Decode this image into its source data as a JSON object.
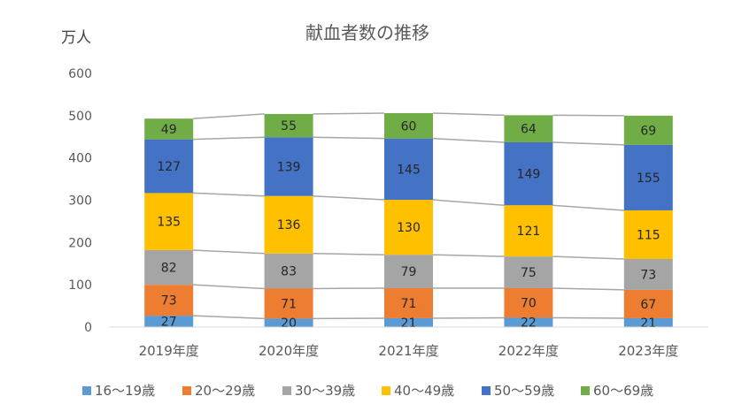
{
  "chart_data": {
    "type": "bar",
    "stacked": true,
    "title": "献血者数の推移",
    "ylabel": "万人",
    "ylim": [
      0,
      600
    ],
    "yticks": [
      0,
      100,
      200,
      300,
      400,
      500,
      600
    ],
    "grid": false,
    "series_lines": true,
    "legend_position": "bottom",
    "categories": [
      "2019年度",
      "2020年度",
      "2021年度",
      "2022年度",
      "2023年度"
    ],
    "series": [
      {
        "name": "16～19歳",
        "color": "#5B9BD5",
        "values": [
          27,
          20,
          21,
          22,
          21
        ]
      },
      {
        "name": "20～29歳",
        "color": "#ED7D31",
        "values": [
          73,
          71,
          71,
          70,
          67
        ]
      },
      {
        "name": "30～39歳",
        "color": "#A5A5A5",
        "values": [
          82,
          83,
          79,
          75,
          73
        ]
      },
      {
        "name": "40～49歳",
        "color": "#FFC000",
        "values": [
          135,
          136,
          130,
          121,
          115
        ]
      },
      {
        "name": "50～59歳",
        "color": "#4472C4",
        "values": [
          127,
          139,
          145,
          149,
          155
        ]
      },
      {
        "name": "60～69歳",
        "color": "#70AD47",
        "values": [
          49,
          55,
          60,
          64,
          69
        ]
      }
    ]
  }
}
